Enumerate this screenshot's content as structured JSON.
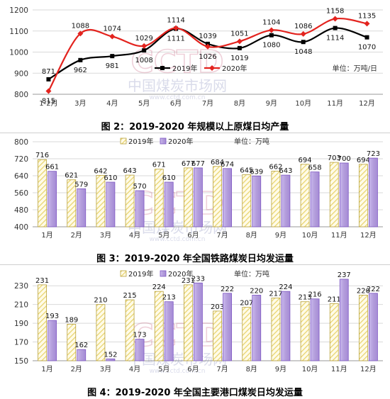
{
  "chart_data": [
    {
      "type": "line",
      "title": "图 2：2019-2020 年规模以上原煤日均产量",
      "unit": "单位：万吨/日",
      "categories": [
        "1-2月",
        "3月",
        "4月",
        "5月",
        "6月",
        "7月",
        "8月",
        "9月",
        "10月",
        "11月",
        "12月"
      ],
      "ylim": [
        800,
        1200
      ],
      "yticks": [
        800,
        900,
        1000,
        1100,
        1200
      ],
      "series": [
        {
          "name": "2019年",
          "color": "#000000",
          "marker": "square",
          "values": [
            871,
            962,
            981,
            1008,
            1111,
            1039,
            1019,
            1080,
            1048,
            1114,
            1070
          ]
        },
        {
          "name": "2020年",
          "color": "#e3231e",
          "marker": "diamond",
          "values": [
            815,
            1088,
            1074,
            1029,
            1114,
            1026,
            1051,
            1104,
            1086,
            1158,
            1135
          ]
        }
      ],
      "legend": "right",
      "grid": true
    },
    {
      "type": "bar",
      "title": "图 3：2019-2020 年全国铁路煤炭日均发运量",
      "unit": "单位：万吨",
      "categories": [
        "1月",
        "2月",
        "3月",
        "4月",
        "5月",
        "6月",
        "7月",
        "8月",
        "9月",
        "10月",
        "11月",
        "12月"
      ],
      "ylim": [
        400,
        800
      ],
      "yticks": [
        400,
        480,
        560,
        640,
        720,
        800
      ],
      "series": [
        {
          "name": "2019年",
          "pattern": "hatch-yellow",
          "values": [
            716,
            621,
            642,
            643,
            671,
            677,
            684,
            645,
            662,
            694,
            703,
            694
          ]
        },
        {
          "name": "2020年",
          "pattern": "purple",
          "values": [
            661,
            579,
            610,
            570,
            610,
            677,
            674,
            639,
            643,
            658,
            700,
            723
          ]
        }
      ],
      "legend": "top",
      "grid": true
    },
    {
      "type": "bar",
      "title": "图 4：2019-2020 年全国主要港口煤炭日均发运量",
      "unit": "单位：万吨",
      "categories": [
        "1月",
        "2月",
        "3月",
        "4月",
        "5月",
        "6月",
        "7月",
        "8月",
        "9月",
        "10月",
        "11月",
        "12月"
      ],
      "ylim": [
        150,
        240
      ],
      "yticks": [
        150,
        170,
        190,
        210,
        230
      ],
      "series": [
        {
          "name": "2019年",
          "pattern": "hatch-yellow",
          "values": [
            231,
            189,
            210,
            215,
            224,
            231,
            203,
            207,
            217,
            213,
            211,
            220
          ]
        },
        {
          "name": "2020年",
          "pattern": "purple",
          "values": [
            193,
            162,
            152,
            173,
            213,
            233,
            222,
            220,
            224,
            216,
            237,
            222
          ]
        }
      ],
      "legend": "top",
      "grid": true
    }
  ],
  "watermark": {
    "logo": "CCTD",
    "cn": "中国煤炭市场网",
    "url": "www.cctd.com.cn"
  },
  "colors": {
    "grid": "#d9d9d9",
    "axis_text": "#333333",
    "hatch": "#e8d36a",
    "bar_purple": "#b39ddb",
    "bar_purple_edge": "#7e57c2"
  }
}
